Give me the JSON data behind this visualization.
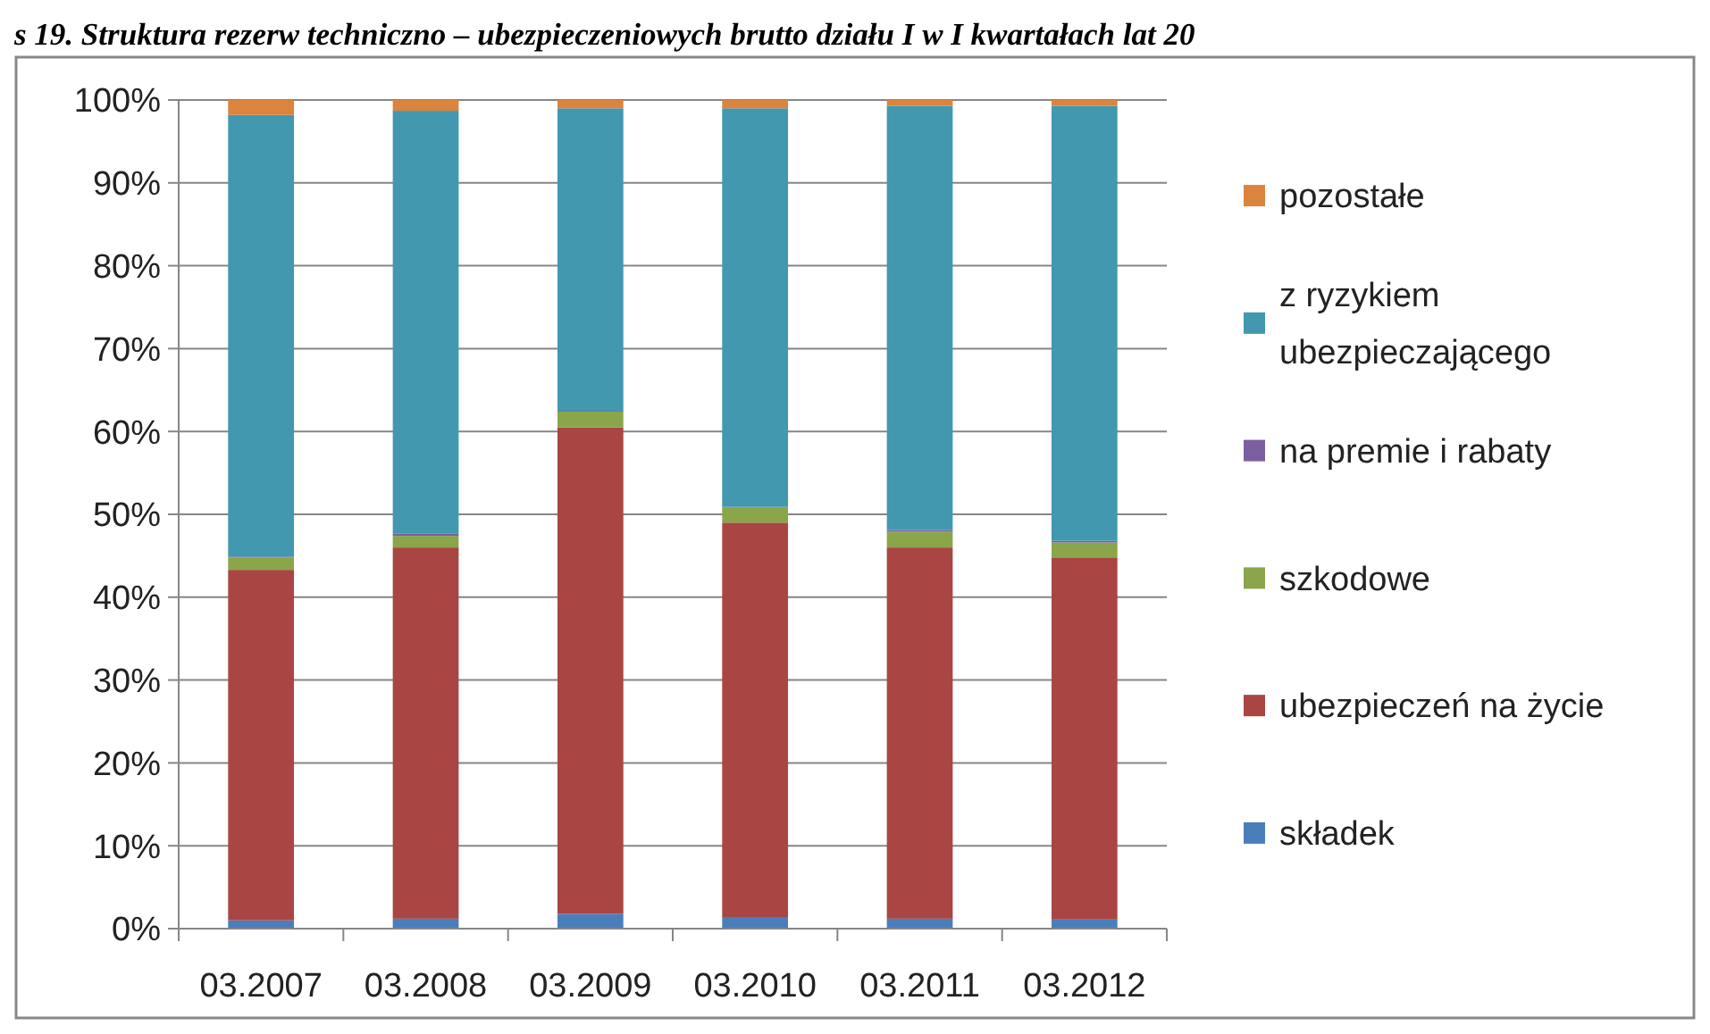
{
  "chart_data": {
    "type": "bar",
    "stacked": true,
    "title": "s 19. Struktura rezerw techniczno – ubezpieczeniowych brutto działu I w I kwartałach lat 20",
    "categories": [
      "03.2007",
      "03.2008",
      "03.2009",
      "03.2010",
      "03.2011",
      "03.2012"
    ],
    "series": [
      {
        "name": "składek",
        "color": "#4a7ebb",
        "values": [
          1.0,
          1.2,
          1.8,
          1.4,
          1.2,
          1.1
        ]
      },
      {
        "name": "ubezpieczeń na życie",
        "color": "#a94643",
        "values": [
          42.3,
          44.8,
          58.7,
          47.6,
          44.8,
          43.7
        ]
      },
      {
        "name": "szkodowe",
        "color": "#8ba54a",
        "values": [
          1.5,
          1.4,
          1.9,
          1.8,
          1.9,
          1.8
        ]
      },
      {
        "name": "na premie i rabaty",
        "color": "#7b5fa0",
        "values": [
          0.1,
          0.3,
          0.1,
          0.1,
          0.2,
          0.2
        ]
      },
      {
        "name": "z ryzykiem ubezpieczającego",
        "color": "#4198af",
        "values": [
          53.3,
          51.0,
          36.5,
          48.1,
          51.2,
          52.5
        ]
      },
      {
        "name": "pozostałe",
        "color": "#db843d",
        "values": [
          1.8,
          1.3,
          1.0,
          1.0,
          0.7,
          0.7
        ]
      }
    ],
    "ylim": [
      0,
      100
    ],
    "yticks": [
      {
        "value": 0,
        "label": "0%"
      },
      {
        "value": 10,
        "label": "10%"
      },
      {
        "value": 20,
        "label": "20%"
      },
      {
        "value": 30,
        "label": "30%"
      },
      {
        "value": 40,
        "label": "40%"
      },
      {
        "value": 50,
        "label": "50%"
      },
      {
        "value": 60,
        "label": "60%"
      },
      {
        "value": 70,
        "label": "70%"
      },
      {
        "value": 80,
        "label": "80%"
      },
      {
        "value": 90,
        "label": "90%"
      },
      {
        "value": 100,
        "label": "100%"
      }
    ],
    "grid": "y",
    "legend": "right"
  }
}
